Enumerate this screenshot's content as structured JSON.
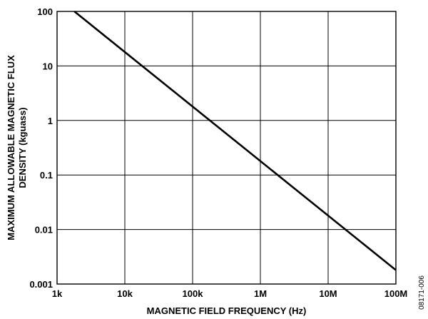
{
  "chart_data": {
    "type": "line",
    "x_scale": "log",
    "y_scale": "log",
    "xlabel": "MAGNETIC FIELD FREQUENCY (Hz)",
    "ylabel_line1": "MAXIMUM ALLOWABLE MAGNETIC FLUX",
    "ylabel_line2": "DENSITY (kguass)",
    "xlim": [
      1000,
      100000000
    ],
    "ylim": [
      0.001,
      100
    ],
    "x_ticks": [
      1000,
      10000,
      100000,
      1000000,
      10000000,
      100000000
    ],
    "x_tick_labels": [
      "1k",
      "10k",
      "100k",
      "1M",
      "10M",
      "100M"
    ],
    "y_ticks": [
      0.001,
      0.01,
      0.1,
      1,
      10,
      100
    ],
    "y_tick_labels": [
      "0.001",
      "0.01",
      "0.1",
      "1",
      "10",
      "100"
    ],
    "grid": true,
    "series": [
      {
        "x": [
          1800,
          100000000
        ],
        "y": [
          100,
          0.0018
        ]
      }
    ],
    "line_color": "#000000"
  },
  "figure_id": "08171-006"
}
